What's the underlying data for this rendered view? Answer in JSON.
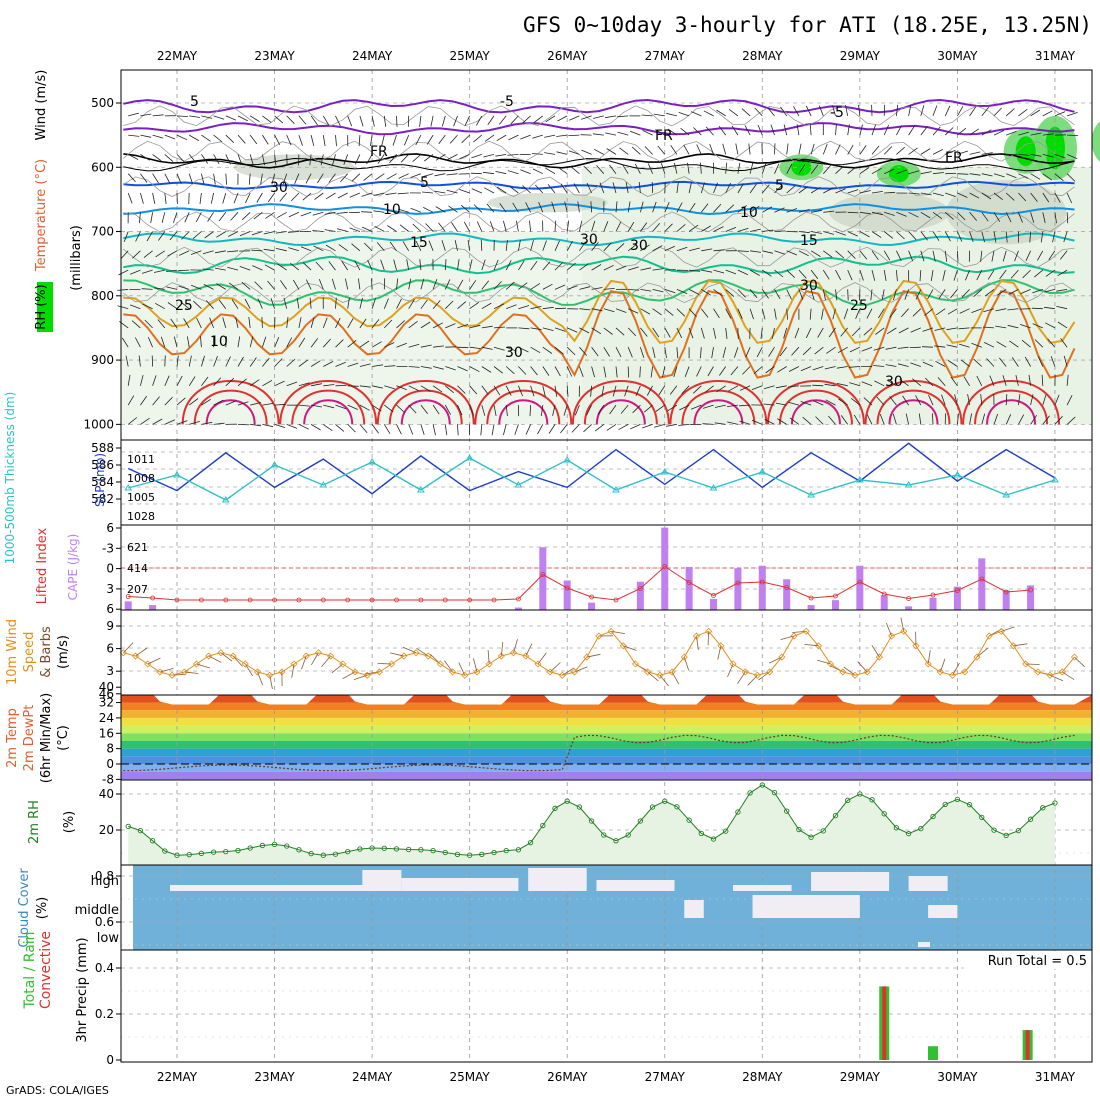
{
  "title": "GFS 0~10day 3-hourly for ATI (18.25E, 13.25N)",
  "footer": "GrADS: COLA/IGES",
  "dates": [
    "22MAY",
    "23MAY",
    "24MAY",
    "25MAY",
    "26MAY",
    "27MAY",
    "28MAY",
    "29MAY",
    "30MAY",
    "31MAY"
  ],
  "colors": {
    "rh_green": "#00dc00",
    "slp": "#1e3cc8",
    "thickness": "#30c0c8",
    "lifted_index": "#e03030",
    "cape": "#c080f0",
    "wind_speed": "#e0901e",
    "rh_line": "#208020",
    "cloud_blue": "#6fb1d8",
    "cloud_white": "#f0eef4",
    "precip_green": "#30c030",
    "precip_red": "#e03030"
  },
  "panels": {
    "upper": {
      "ylabels": {
        "wind": "Wind (m/s)",
        "temp": "Temperature (°C)",
        "rh": "RH (%)",
        "mb": "(millibars)"
      },
      "pressure_ticks": [
        "500",
        "600",
        "700",
        "800",
        "900",
        "1000"
      ],
      "contour_labels": [
        "5",
        "-5",
        "-5",
        "FR",
        "FR",
        "FR",
        "5",
        "5",
        "10",
        "10",
        "15",
        "15",
        "25",
        "25",
        "30",
        "30",
        "30",
        "30",
        "30",
        "30",
        "10"
      ]
    },
    "slp": {
      "ylabel_left": "1000-500mb Thickness (dm)",
      "ylabel_right": "SLP (mb)",
      "left_ticks": [
        "588",
        "586",
        "584",
        "582"
      ],
      "right_ticks": [
        "1011",
        "1008",
        "1005",
        "1028"
      ]
    },
    "cape": {
      "ylabel_left": "Lifted Index",
      "ylabel_right": "CAPE (J/kg)",
      "left_ticks": [
        "6",
        "-3",
        "0",
        "3",
        "6"
      ],
      "right_ticks": [
        "621",
        "414",
        "207"
      ]
    },
    "wind": {
      "ylabel": [
        "10m Wind",
        "Speed",
        "& Barbs",
        "(m/s)"
      ],
      "ticks": [
        "9",
        "6",
        "3",
        "46"
      ]
    },
    "temp": {
      "ylabel": [
        "2m Temp",
        "2m DewPt",
        "(6hr Min/Max)",
        "(°C)"
      ],
      "ticks": [
        "40",
        "32",
        "24",
        "16",
        "8",
        "0",
        "-8"
      ]
    },
    "rh": {
      "ylabel": [
        "2m RH",
        "(%)"
      ],
      "ticks": [
        "40",
        "20"
      ]
    },
    "cloud": {
      "ylabel": [
        "Cloud Cover",
        "(%)"
      ],
      "levels": [
        "high",
        "middle",
        "low"
      ]
    },
    "precip": {
      "ylabel": [
        "Total / Rain",
        "Convective",
        "3hr Precip (mm)"
      ],
      "ticks": [
        "0.8",
        "0.6",
        "0.4",
        "0.2",
        "0"
      ],
      "run_total": "Run Total = 0.5"
    }
  },
  "chart_data": [
    {
      "type": "line",
      "title": "",
      "x": [
        "22MAY",
        "22MAY12",
        "23MAY",
        "23MAY12",
        "24MAY",
        "24MAY12",
        "25MAY",
        "25MAY12",
        "26MAY",
        "26MAY12",
        "27MAY",
        "27MAY12",
        "28MAY",
        "28MAY12",
        "29MAY",
        "29MAY12",
        "30MAY",
        "30MAY12",
        "31MAY",
        "31MAY12"
      ],
      "series": [
        {
          "name": "SLP (mb)",
          "values": [
            1008,
            1004.5,
            1010.5,
            1005,
            1009.5,
            1004,
            1010,
            1004.5,
            1007.5,
            1005,
            1011,
            1005.5,
            1011,
            1005,
            1010.5,
            1006,
            1012,
            1006,
            1011,
            1006.5
          ]
        },
        {
          "name": "1000-500mb Thickness (dm)",
          "values": [
            584.2,
            585.5,
            583,
            586.5,
            584.5,
            586.8,
            584,
            587.2,
            584.5,
            587,
            584,
            585.8,
            584.2,
            585.8,
            583.5,
            585,
            584.5,
            585.5,
            583.5,
            585
          ]
        }
      ]
    },
    {
      "type": "bar",
      "title": "CAPE (J/kg)",
      "x": [
        "22MAY",
        "22MAY06",
        "22MAY12",
        "22MAY18",
        "23MAY",
        "23MAY06",
        "23MAY12",
        "23MAY18",
        "24MAY",
        "24MAY06",
        "24MAY12",
        "24MAY18",
        "25MAY",
        "25MAY06",
        "25MAY12",
        "25MAY18",
        "26MAY",
        "26MAY06",
        "26MAY12",
        "26MAY18",
        "27MAY",
        "27MAY06",
        "27MAY12",
        "27MAY18",
        "28MAY",
        "28MAY06",
        "28MAY12",
        "28MAY18",
        "29MAY",
        "29MAY06",
        "29MAY12",
        "29MAY18",
        "30MAY",
        "30MAY06",
        "30MAY12",
        "30MAY18",
        "31MAY",
        "31MAY06"
      ],
      "values": [
        70,
        40,
        0,
        0,
        0,
        0,
        0,
        0,
        0,
        0,
        0,
        0,
        0,
        0,
        0,
        0,
        20,
        510,
        240,
        60,
        0,
        230,
        670,
        350,
        90,
        340,
        360,
        250,
        40,
        80,
        360,
        120,
        30,
        100,
        190,
        420,
        160,
        200
      ]
    },
    {
      "type": "line",
      "title": "2m RH (%)",
      "x": [
        "22MAY",
        "22MAY12",
        "23MAY",
        "23MAY12",
        "24MAY",
        "24MAY12",
        "25MAY",
        "25MAY12",
        "26MAY",
        "26MAY12",
        "27MAY",
        "27MAY12",
        "28MAY",
        "28MAY12",
        "29MAY",
        "29MAY12",
        "30MAY",
        "30MAY12",
        "31MAY",
        "31MAY12"
      ],
      "values": [
        22,
        6,
        8,
        12,
        6,
        10,
        9,
        6,
        9,
        36,
        14,
        36,
        15,
        45,
        16,
        40,
        18,
        37,
        17,
        35
      ]
    },
    {
      "type": "bar",
      "title": "3hr Precip (mm)",
      "x": [
        "29MAY06",
        "29MAY18",
        "30MAY18"
      ],
      "values": [
        0.32,
        0.06,
        0.13
      ]
    }
  ]
}
